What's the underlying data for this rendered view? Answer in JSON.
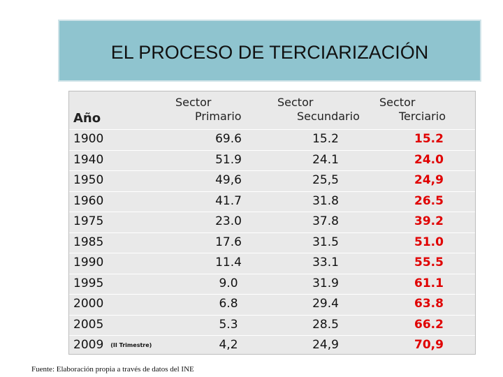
{
  "title": "EL PROCESO DE TERCIARIZACIÓN",
  "table": {
    "headers": {
      "year": "Año",
      "primary": [
        "Sector",
        "Primario"
      ],
      "secondary": [
        "Sector",
        "Secundario"
      ],
      "tertiary": [
        "Sector",
        "Terciario"
      ]
    },
    "rows": [
      {
        "year": "1900",
        "note": "",
        "primary": "69.6",
        "secondary": "15.2",
        "tertiary": "15.2"
      },
      {
        "year": "1940",
        "note": "",
        "primary": "51.9",
        "secondary": "24.1",
        "tertiary": "24.0"
      },
      {
        "year": "1950",
        "note": "",
        "primary": "49,6",
        "secondary": "25,5",
        "tertiary": "24,9"
      },
      {
        "year": "1960",
        "note": "",
        "primary": "41.7",
        "secondary": "31.8",
        "tertiary": "26.5"
      },
      {
        "year": "1975",
        "note": "",
        "primary": "23.0",
        "secondary": "37.8",
        "tertiary": "39.2"
      },
      {
        "year": "1985",
        "note": "",
        "primary": "17.6",
        "secondary": "31.5",
        "tertiary": "51.0"
      },
      {
        "year": "1990",
        "note": "",
        "primary": "11.4",
        "secondary": "33.1",
        "tertiary": "55.5"
      },
      {
        "year": "1995",
        "note": "",
        "primary": "9.0",
        "secondary": "31.9",
        "tertiary": "61.1"
      },
      {
        "year": "2000",
        "note": "",
        "primary": "6.8",
        "secondary": "29.4",
        "tertiary": "63.8"
      },
      {
        "year": "2005",
        "note": "",
        "primary": "5.3",
        "secondary": "28.5",
        "tertiary": "66.2"
      },
      {
        "year": "2009",
        "note": "(II Trimestre)",
        "primary": "4,2",
        "secondary": "24,9",
        "tertiary": "70,9"
      }
    ]
  },
  "footnote": "Fuente: Elaboración propia a través de datos del INE",
  "colors": {
    "title_bg": "#8fc4cf",
    "table_bg": "#e9e9e9",
    "tertiary_text": "#e00000"
  }
}
